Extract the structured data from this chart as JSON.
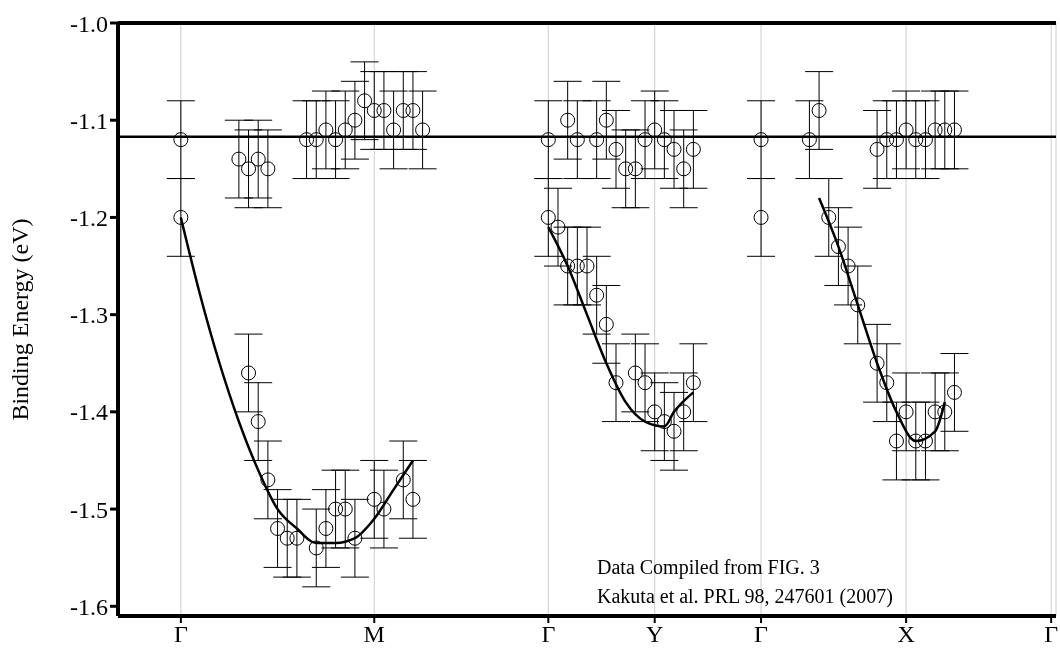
{
  "chart_data": {
    "type": "scatter",
    "ylabel": "Binding Energy (eV)",
    "marker": "circle",
    "grid": "x",
    "ylim": [
      -1.61,
      -1.0
    ],
    "yticks": [
      {
        "value": -1.6,
        "label": "-1.6"
      },
      -1.5,
      -1.4,
      -1.3,
      -1.2,
      -1.1,
      {
        "value": -1.0,
        "label": "-1.0"
      }
    ],
    "categories": [
      null,
      null,
      null,
      null,
      null,
      null,
      "Γ",
      null,
      null,
      null,
      null,
      null,
      null,
      null,
      null,
      null,
      null,
      null,
      null,
      null,
      null,
      null,
      null,
      null,
      null,
      null,
      "M",
      null,
      null,
      null,
      null,
      null,
      null,
      null,
      null,
      null,
      null,
      null,
      null,
      null,
      null,
      null,
      null,
      null,
      "Γ",
      null,
      null,
      null,
      null,
      null,
      null,
      null,
      null,
      null,
      null,
      "Y",
      null,
      null,
      null,
      null,
      null,
      null,
      null,
      null,
      null,
      null,
      "Γ",
      null,
      null,
      null,
      null,
      null,
      null,
      null,
      null,
      null,
      null,
      null,
      null,
      null,
      null,
      "X",
      null,
      null,
      null,
      null,
      null,
      null,
      null,
      null,
      null,
      null,
      null,
      null,
      null,
      null,
      "Γ"
    ],
    "ref_lines": [
      {
        "axis": "y",
        "value": -1.117,
        "color": "#000000"
      }
    ],
    "series": [
      {
        "color": "#000000",
        "values": [
          null,
          null,
          null,
          null,
          null,
          null,
          -1.12,
          null,
          null,
          null,
          null,
          null,
          -1.14,
          -1.15,
          -1.14,
          -1.15,
          null,
          null,
          null,
          -1.12,
          -1.12,
          -1.11,
          -1.12,
          -1.11,
          -1.1,
          -1.08,
          -1.09,
          -1.09,
          -1.11,
          -1.09,
          -1.09,
          -1.11,
          null,
          null,
          null,
          null,
          null,
          null,
          null,
          null,
          null,
          null,
          null,
          null,
          -1.12,
          null,
          -1.1,
          -1.12,
          null,
          -1.12,
          -1.1,
          -1.13,
          -1.15,
          -1.15,
          -1.12,
          -1.11,
          -1.12,
          -1.13,
          -1.15,
          -1.13,
          null,
          null,
          null,
          null,
          null,
          null,
          -1.12,
          null,
          null,
          null,
          null,
          -1.12,
          -1.09,
          null,
          null,
          null,
          null,
          null,
          -1.13,
          -1.12,
          -1.12,
          -1.11,
          -1.12,
          -1.12,
          -1.11,
          -1.11,
          -1.11,
          null,
          null,
          null,
          null,
          null,
          null,
          null,
          null,
          null,
          null
        ],
        "errors": [
          null,
          null,
          null,
          null,
          null,
          null,
          0.04,
          null,
          null,
          null,
          null,
          null,
          0.04,
          0.04,
          0.04,
          0.04,
          null,
          null,
          null,
          0.04,
          0.04,
          0.04,
          0.04,
          0.04,
          0.04,
          0.04,
          0.04,
          0.04,
          0.04,
          0.04,
          0.04,
          0.04,
          null,
          null,
          null,
          null,
          null,
          null,
          null,
          null,
          null,
          null,
          null,
          null,
          0.04,
          null,
          0.04,
          0.04,
          null,
          0.04,
          0.04,
          0.04,
          0.04,
          0.04,
          0.04,
          0.04,
          0.04,
          0.04,
          0.04,
          0.04,
          null,
          null,
          null,
          null,
          null,
          null,
          0.04,
          null,
          null,
          null,
          null,
          0.04,
          0.04,
          null,
          null,
          null,
          null,
          null,
          0.04,
          0.04,
          0.04,
          0.04,
          0.04,
          0.04,
          0.04,
          0.04,
          0.04,
          null,
          null,
          null,
          null,
          null,
          null,
          null,
          null,
          null,
          null
        ]
      },
      {
        "color": "#000000",
        "values": [
          null,
          null,
          null,
          null,
          null,
          null,
          -1.2,
          null,
          null,
          null,
          null,
          null,
          null,
          -1.36,
          -1.41,
          -1.47,
          -1.52,
          -1.53,
          -1.53,
          null,
          -1.54,
          -1.52,
          -1.5,
          -1.5,
          -1.53,
          null,
          -1.49,
          -1.5,
          null,
          -1.47,
          -1.49,
          null,
          null,
          null,
          null,
          null,
          null,
          null,
          null,
          null,
          null,
          null,
          null,
          null,
          -1.2,
          -1.21,
          -1.25,
          -1.25,
          -1.25,
          -1.28,
          -1.31,
          -1.37,
          null,
          -1.36,
          -1.37,
          -1.4,
          -1.41,
          -1.42,
          -1.4,
          -1.37,
          null,
          null,
          null,
          null,
          null,
          null,
          -1.2,
          null,
          null,
          null,
          null,
          null,
          null,
          -1.2,
          -1.23,
          -1.25,
          -1.29,
          null,
          -1.35,
          -1.37,
          -1.43,
          -1.4,
          -1.43,
          -1.43,
          -1.4,
          -1.4,
          -1.38,
          null,
          null,
          null,
          null,
          null,
          null,
          null,
          null,
          null,
          null
        ],
        "errors": [
          null,
          null,
          null,
          null,
          null,
          null,
          0.04,
          null,
          null,
          null,
          null,
          null,
          null,
          0.04,
          0.04,
          0.04,
          0.04,
          0.04,
          0.04,
          null,
          0.04,
          0.04,
          0.04,
          0.04,
          0.04,
          null,
          0.04,
          0.04,
          null,
          0.04,
          0.04,
          null,
          null,
          null,
          null,
          null,
          null,
          null,
          null,
          null,
          null,
          null,
          null,
          null,
          0.04,
          0.04,
          0.04,
          0.04,
          0.04,
          0.04,
          0.04,
          0.04,
          null,
          0.04,
          0.04,
          0.04,
          0.04,
          0.04,
          0.04,
          0.04,
          null,
          null,
          null,
          null,
          null,
          null,
          0.04,
          null,
          null,
          null,
          null,
          null,
          null,
          0.04,
          0.04,
          0.04,
          0.04,
          null,
          0.04,
          0.04,
          0.04,
          0.04,
          0.04,
          0.04,
          0.04,
          0.04,
          0.04,
          null,
          null,
          null,
          null,
          null,
          null,
          null,
          null,
          null,
          null
        ]
      },
      {
        "type": "line",
        "marker": "none",
        "color": "#000000",
        "values": [
          null,
          null,
          null,
          null,
          null,
          null,
          -1.2,
          null,
          -1.28,
          null,
          -1.35,
          null,
          -1.41,
          null,
          -1.46,
          null,
          -1.5,
          null,
          -1.52,
          null,
          -1.535,
          null,
          -1.535,
          null,
          -1.53,
          null,
          -1.51,
          null,
          -1.48,
          null,
          -1.45,
          null,
          null,
          null,
          null,
          null,
          null,
          null,
          null,
          null,
          null,
          null,
          null,
          null,
          null,
          null,
          null,
          null,
          null,
          null,
          null,
          null,
          null,
          null,
          null,
          null,
          null,
          null,
          null,
          null,
          null,
          null,
          null,
          null,
          null,
          null,
          null,
          null,
          null,
          null,
          null,
          null,
          null,
          null,
          null,
          null,
          null,
          null,
          null,
          null,
          null,
          null,
          null,
          null,
          null,
          null,
          null,
          null,
          null,
          null,
          null,
          null,
          null,
          null,
          null,
          null,
          null
        ]
      },
      {
        "type": "line",
        "marker": "none",
        "color": "#000000",
        "values": [
          null,
          null,
          null,
          null,
          null,
          null,
          null,
          null,
          null,
          null,
          null,
          null,
          null,
          null,
          null,
          null,
          null,
          null,
          null,
          null,
          null,
          null,
          null,
          null,
          null,
          null,
          null,
          null,
          null,
          null,
          null,
          null,
          null,
          null,
          null,
          null,
          null,
          null,
          null,
          null,
          null,
          null,
          null,
          null,
          -1.21,
          null,
          -1.25,
          null,
          -1.3,
          null,
          -1.35,
          null,
          -1.39,
          null,
          -1.41,
          null,
          -1.415,
          -1.4,
          null,
          -1.38,
          null,
          null,
          null,
          null,
          null,
          null,
          null,
          null,
          null,
          null,
          null,
          null,
          null,
          null,
          null,
          null,
          null,
          null,
          null,
          null,
          null,
          null,
          null,
          null,
          null,
          null,
          null,
          null,
          null,
          null,
          null,
          null,
          null,
          null,
          null,
          null,
          null
        ]
      },
      {
        "type": "line",
        "marker": "none",
        "color": "#000000",
        "values": [
          null,
          null,
          null,
          null,
          null,
          null,
          null,
          null,
          null,
          null,
          null,
          null,
          null,
          null,
          null,
          null,
          null,
          null,
          null,
          null,
          null,
          null,
          null,
          null,
          null,
          null,
          null,
          null,
          null,
          null,
          null,
          null,
          null,
          null,
          null,
          null,
          null,
          null,
          null,
          null,
          null,
          null,
          null,
          null,
          null,
          null,
          null,
          null,
          null,
          null,
          null,
          null,
          null,
          null,
          null,
          null,
          null,
          null,
          null,
          null,
          null,
          null,
          null,
          null,
          null,
          null,
          null,
          null,
          null,
          null,
          null,
          null,
          -1.18,
          null,
          -1.23,
          null,
          -1.29,
          null,
          -1.35,
          null,
          -1.4,
          null,
          -1.43,
          null,
          -1.42,
          -1.39,
          null,
          null,
          null,
          null,
          null,
          null,
          null,
          null,
          null,
          null,
          null
        ]
      }
    ],
    "annotations": [
      "Data Compiled from FIG. 3",
      "Kakuta et al. PRL 98, 247601 (2007)"
    ]
  }
}
